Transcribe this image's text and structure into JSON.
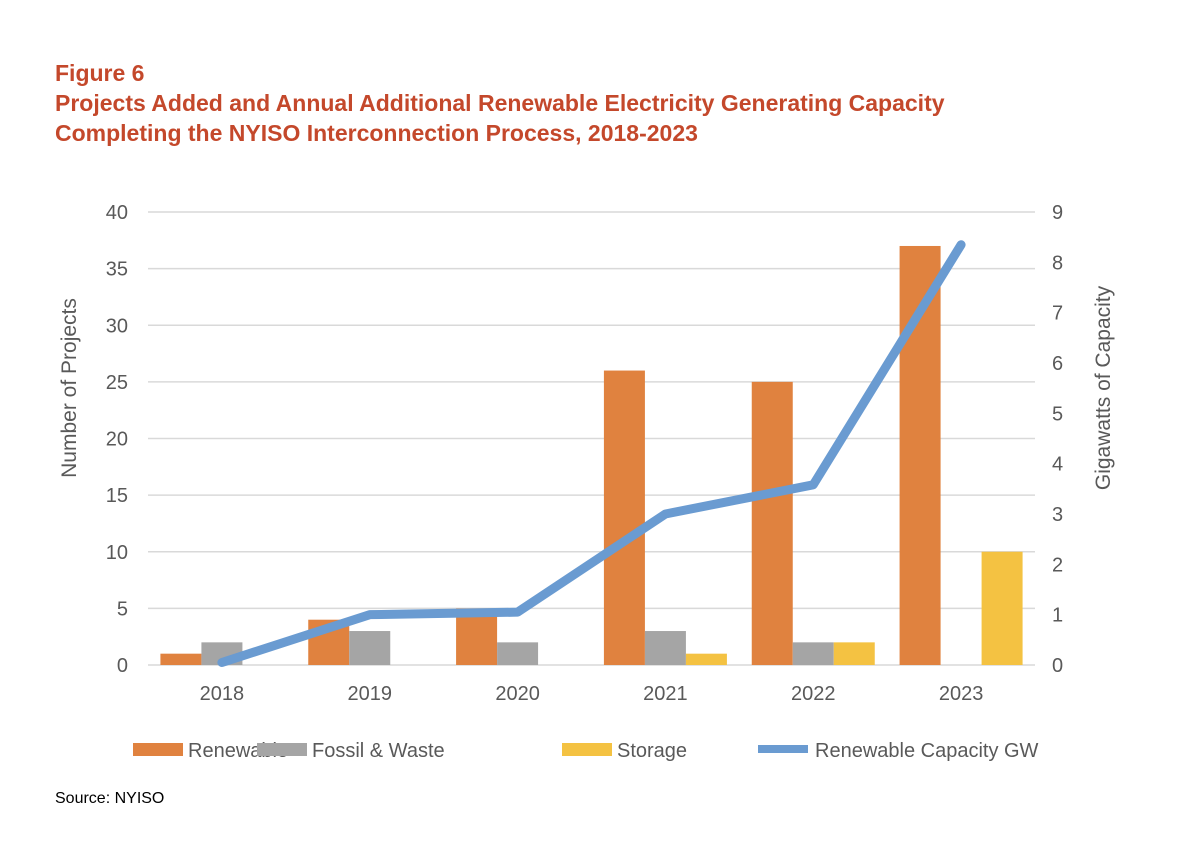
{
  "figure_label": "Figure 6",
  "title_line1": "Projects Added and Annual Additional Renewable Electricity Generating Capacity",
  "title_line2": "Completing the NYISO Interconnection Process, 2018-2023",
  "source": "Source: NYISO",
  "chart_data": {
    "type": "bar",
    "categories": [
      "2018",
      "2019",
      "2020",
      "2021",
      "2022",
      "2023"
    ],
    "series": [
      {
        "name": "Renewable",
        "type": "bar",
        "axis": "left",
        "color": "#E0823F",
        "values": [
          1,
          4,
          5,
          26,
          25,
          37
        ]
      },
      {
        "name": "Fossil & Waste",
        "type": "bar",
        "axis": "left",
        "color": "#A5A5A5",
        "values": [
          2,
          3,
          2,
          3,
          2,
          0
        ]
      },
      {
        "name": "Storage",
        "type": "bar",
        "axis": "left",
        "color": "#F4C242",
        "values": [
          0,
          0,
          0,
          1,
          2,
          10
        ]
      },
      {
        "name": "Renewable Capacity GW",
        "type": "line",
        "axis": "right",
        "color": "#6A9BD1",
        "values": [
          0.05,
          1.0,
          1.05,
          3.0,
          3.58,
          8.35
        ]
      }
    ],
    "ylabel": "Number of Projects",
    "ylim": [
      0,
      40
    ],
    "yticks": [
      "0",
      "5",
      "10",
      "15",
      "20",
      "25",
      "30",
      "35",
      "40"
    ],
    "y2label": "Gigawatts of Capacity",
    "y2lim": [
      0,
      9
    ],
    "y2ticks": [
      "0",
      "1",
      "2",
      "3",
      "4",
      "5",
      "6",
      "7",
      "8",
      "9"
    ],
    "grid": true,
    "legend": "bottom"
  }
}
